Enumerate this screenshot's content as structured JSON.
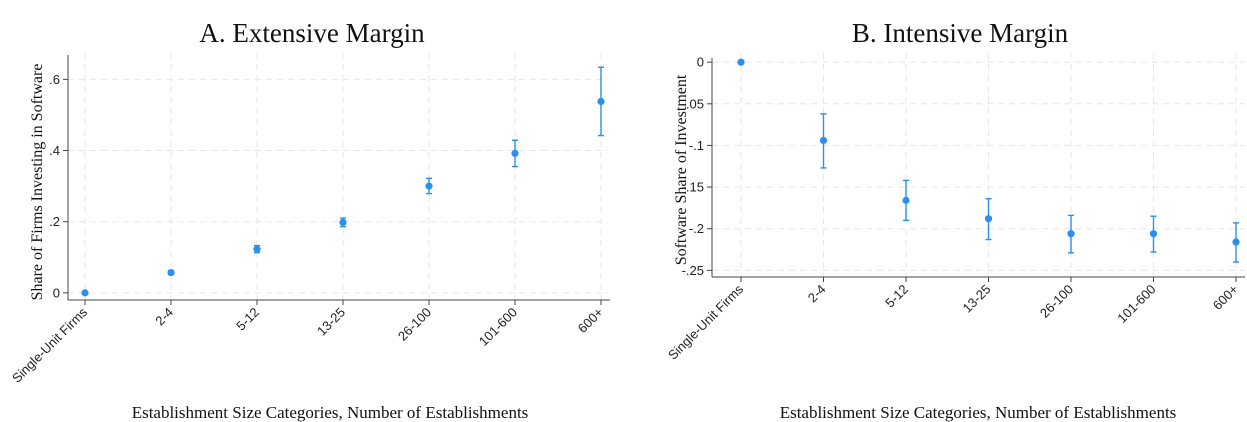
{
  "chart_data": [
    {
      "type": "scatter",
      "title": "A. Extensive Margin",
      "xlabel": "Establishment Size Categories, Number of Establishments",
      "ylabel": "Share of Firms Investing in Software",
      "categories": [
        "Single-Unit Firms",
        "2-4",
        "5-12",
        "13-25",
        "26-100",
        "101-600",
        "600+"
      ],
      "series": [
        {
          "values": [
            0.0,
            0.057,
            0.123,
            0.198,
            0.3,
            0.392,
            0.538
          ],
          "ci_low": [
            0.0,
            0.052,
            0.113,
            0.186,
            0.279,
            0.355,
            0.442
          ],
          "ci_high": [
            0.0,
            0.062,
            0.133,
            0.21,
            0.322,
            0.429,
            0.634
          ]
        }
      ],
      "yticks": [
        0,
        0.2,
        0.4,
        0.6
      ],
      "ytick_labels": [
        "0",
        ".2",
        ".4",
        ".6"
      ],
      "ylim": [
        -0.02,
        0.66
      ],
      "grid": true,
      "marker_color": "#2a8ff0"
    },
    {
      "type": "scatter",
      "title": "B. Intensive Margin",
      "xlabel": "Establishment Size Categories, Number of Establishments",
      "ylabel": "Software Share of Investment",
      "categories": [
        "Single-Unit Firms",
        "2-4",
        "5-12",
        "13-25",
        "26-100",
        "101-600",
        "600+"
      ],
      "series": [
        {
          "values": [
            0.0,
            -0.094,
            -0.166,
            -0.188,
            -0.206,
            -0.206,
            -0.216
          ],
          "ci_low": [
            0.0,
            -0.127,
            -0.19,
            -0.213,
            -0.229,
            -0.228,
            -0.24
          ],
          "ci_high": [
            0.0,
            -0.062,
            -0.142,
            -0.164,
            -0.184,
            -0.185,
            -0.193
          ]
        }
      ],
      "yticks": [
        0,
        -0.05,
        -0.1,
        -0.15,
        -0.2,
        -0.25
      ],
      "ytick_labels": [
        "0",
        "-.05",
        "-.1",
        "-.15",
        "-.2",
        "-.25"
      ],
      "ylim": [
        -0.258,
        0.005
      ],
      "grid": true,
      "marker_color": "#2a8ff0"
    }
  ]
}
